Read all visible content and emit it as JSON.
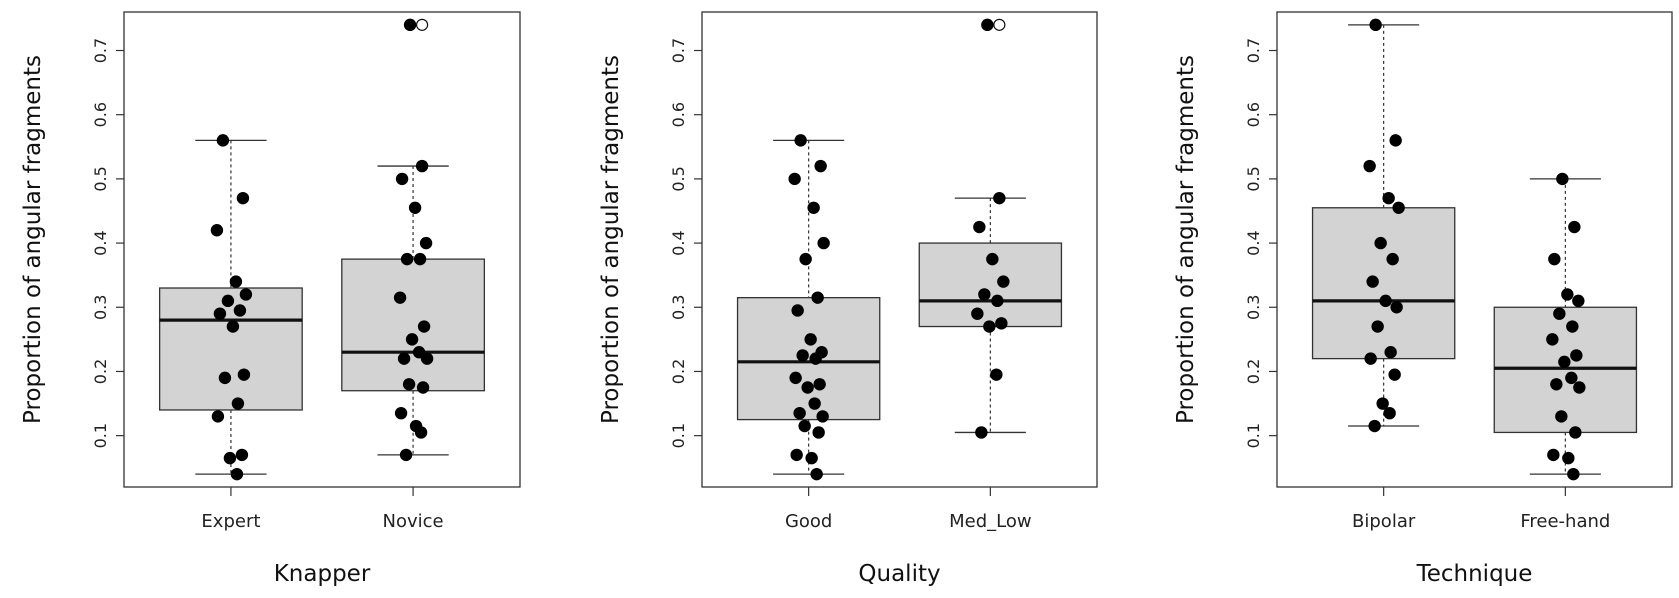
{
  "chart_data": [
    {
      "type": "box",
      "xlabel": "Knapper",
      "ylabel": "Proportion of angular fragments",
      "ylim": [
        0.02,
        0.76
      ],
      "yticks": [
        "0.1",
        "0.2",
        "0.3",
        "0.4",
        "0.5",
        "0.6",
        "0.7"
      ],
      "categories": [
        "Expert",
        "Novice"
      ],
      "boxes": [
        {
          "category": "Expert",
          "whisker_low": 0.04,
          "q1": 0.14,
          "median": 0.28,
          "q3": 0.33,
          "whisker_high": 0.56,
          "outliers": [],
          "points": [
            0.56,
            0.47,
            0.42,
            0.34,
            0.32,
            0.31,
            0.295,
            0.29,
            0.27,
            0.195,
            0.19,
            0.15,
            0.13,
            0.07,
            0.065,
            0.04
          ]
        },
        {
          "category": "Novice",
          "whisker_low": 0.07,
          "q1": 0.17,
          "median": 0.23,
          "q3": 0.375,
          "whisker_high": 0.52,
          "outliers": [
            0.74
          ],
          "points": [
            0.74,
            0.52,
            0.5,
            0.455,
            0.4,
            0.375,
            0.375,
            0.315,
            0.27,
            0.25,
            0.23,
            0.22,
            0.22,
            0.18,
            0.175,
            0.135,
            0.115,
            0.105,
            0.07
          ]
        }
      ]
    },
    {
      "type": "box",
      "xlabel": "Quality",
      "ylabel": "Proportion of angular fragments",
      "ylim": [
        0.02,
        0.76
      ],
      "yticks": [
        "0.1",
        "0.2",
        "0.3",
        "0.4",
        "0.5",
        "0.6",
        "0.7"
      ],
      "categories": [
        "Good",
        "Med_Low"
      ],
      "boxes": [
        {
          "category": "Good",
          "whisker_low": 0.04,
          "q1": 0.125,
          "median": 0.215,
          "q3": 0.315,
          "whisker_high": 0.56,
          "outliers": [],
          "points": [
            0.56,
            0.52,
            0.5,
            0.455,
            0.4,
            0.375,
            0.315,
            0.295,
            0.25,
            0.23,
            0.225,
            0.22,
            0.19,
            0.18,
            0.175,
            0.15,
            0.135,
            0.13,
            0.115,
            0.105,
            0.07,
            0.065,
            0.04
          ]
        },
        {
          "category": "Med_Low",
          "whisker_low": 0.105,
          "q1": 0.27,
          "median": 0.31,
          "q3": 0.4,
          "whisker_high": 0.47,
          "outliers": [
            0.74
          ],
          "points": [
            0.74,
            0.47,
            0.425,
            0.375,
            0.34,
            0.32,
            0.31,
            0.29,
            0.275,
            0.27,
            0.195,
            0.105
          ]
        }
      ]
    },
    {
      "type": "box",
      "xlabel": "Technique",
      "ylabel": "Proportion of angular fragments",
      "ylim": [
        0.02,
        0.76
      ],
      "yticks": [
        "0.1",
        "0.2",
        "0.3",
        "0.4",
        "0.5",
        "0.6",
        "0.7"
      ],
      "categories": [
        "Bipolar",
        "Free-hand"
      ],
      "boxes": [
        {
          "category": "Bipolar",
          "whisker_low": 0.115,
          "q1": 0.22,
          "median": 0.31,
          "q3": 0.455,
          "whisker_high": 0.74,
          "outliers": [],
          "points": [
            0.74,
            0.56,
            0.52,
            0.47,
            0.455,
            0.4,
            0.375,
            0.34,
            0.31,
            0.3,
            0.27,
            0.23,
            0.22,
            0.195,
            0.15,
            0.135,
            0.115
          ]
        },
        {
          "category": "Free-hand",
          "whisker_low": 0.04,
          "q1": 0.105,
          "median": 0.205,
          "q3": 0.3,
          "whisker_high": 0.5,
          "outliers": [],
          "points": [
            0.5,
            0.425,
            0.375,
            0.32,
            0.31,
            0.29,
            0.27,
            0.25,
            0.225,
            0.215,
            0.19,
            0.18,
            0.175,
            0.13,
            0.105,
            0.07,
            0.065,
            0.04
          ]
        }
      ]
    }
  ]
}
